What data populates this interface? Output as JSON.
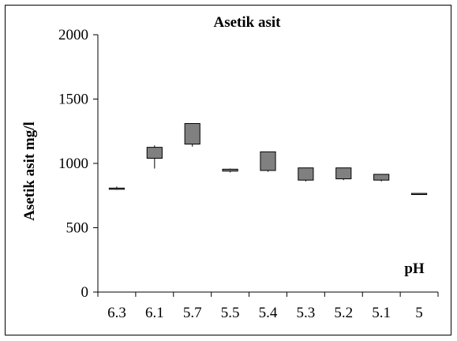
{
  "chart_data": {
    "type": "candlestick",
    "title": "Asetik asit",
    "ylabel": "Asetik asit  mg/l",
    "xlabel": "",
    "annotation": "pH",
    "ylim": [
      0,
      2000
    ],
    "yticks": [
      0,
      500,
      1000,
      1500,
      2000
    ],
    "categories": [
      "6.3",
      "6.1",
      "5.7",
      "5.5",
      "5.4",
      "5.3",
      "5.2",
      "5.1",
      "5"
    ],
    "boxes": [
      {
        "low": 795,
        "high": 820,
        "box_low": 805,
        "box_high": 808
      },
      {
        "low": 960,
        "high": 1140,
        "box_low": 1040,
        "box_high": 1125
      },
      {
        "low": 1130,
        "high": 1310,
        "box_low": 1150,
        "box_high": 1310
      },
      {
        "low": 930,
        "high": 960,
        "box_low": 940,
        "box_high": 955
      },
      {
        "low": 935,
        "high": 1090,
        "box_low": 945,
        "box_high": 1090
      },
      {
        "low": 860,
        "high": 965,
        "box_low": 870,
        "box_high": 965
      },
      {
        "low": 870,
        "high": 965,
        "box_low": 880,
        "box_high": 965
      },
      {
        "low": 860,
        "high": 915,
        "box_low": 870,
        "box_high": 915
      },
      {
        "low": 760,
        "high": 770,
        "box_low": 763,
        "box_high": 767
      }
    ],
    "box_color": "#808080",
    "grid": false,
    "legend": "none"
  }
}
